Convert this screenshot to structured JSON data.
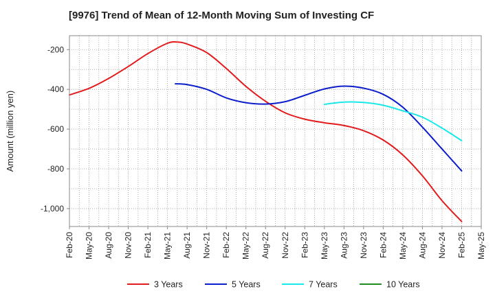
{
  "chart_data": {
    "type": "line",
    "title": "[9976]  Trend of Mean of 12-Month Moving Sum of Investing CF",
    "xlabel": "",
    "ylabel": "Amount (million yen)",
    "x_ticks": [
      "Feb-20",
      "May-20",
      "Aug-20",
      "Nov-20",
      "Feb-21",
      "May-21",
      "Aug-21",
      "Nov-21",
      "Feb-22",
      "May-22",
      "Aug-22",
      "Nov-22",
      "Feb-23",
      "May-23",
      "Aug-23",
      "Nov-23",
      "Feb-24",
      "May-24",
      "Aug-24",
      "Nov-24",
      "Feb-25",
      "May-25"
    ],
    "y_ticks": [
      -200,
      -400,
      -600,
      -800,
      -1000
    ],
    "y_tick_labels": [
      "-200",
      "-400",
      "-600",
      "-800",
      "-1,000"
    ],
    "ylim": [
      -1090,
      -130
    ],
    "grid": true,
    "series": [
      {
        "name": "3 Years",
        "color": "#e31a1c",
        "points": [
          [
            0,
            -428
          ],
          [
            1,
            -395
          ],
          [
            2,
            -345
          ],
          [
            3,
            -285
          ],
          [
            4,
            -220
          ],
          [
            5,
            -168
          ],
          [
            5.5,
            -162
          ],
          [
            6,
            -172
          ],
          [
            7,
            -215
          ],
          [
            8,
            -295
          ],
          [
            9,
            -385
          ],
          [
            10,
            -460
          ],
          [
            11,
            -518
          ],
          [
            12,
            -550
          ],
          [
            13,
            -568
          ],
          [
            14,
            -582
          ],
          [
            15,
            -608
          ],
          [
            16,
            -655
          ],
          [
            17,
            -730
          ],
          [
            18,
            -835
          ],
          [
            19,
            -960
          ],
          [
            20,
            -1065
          ]
        ]
      },
      {
        "name": "5 Years",
        "color": "#0a1ccc",
        "points": [
          [
            5.4,
            -372
          ],
          [
            6,
            -376
          ],
          [
            7,
            -400
          ],
          [
            8,
            -443
          ],
          [
            9,
            -467
          ],
          [
            10,
            -474
          ],
          [
            11,
            -462
          ],
          [
            12,
            -430
          ],
          [
            13,
            -398
          ],
          [
            14,
            -384
          ],
          [
            15,
            -394
          ],
          [
            16,
            -425
          ],
          [
            17,
            -490
          ],
          [
            18,
            -590
          ],
          [
            19,
            -700
          ],
          [
            20,
            -810
          ]
        ]
      },
      {
        "name": "7 Years",
        "color": "#19e8e8",
        "points": [
          [
            13,
            -475
          ],
          [
            14,
            -464
          ],
          [
            15,
            -466
          ],
          [
            16,
            -480
          ],
          [
            17,
            -508
          ],
          [
            18,
            -540
          ],
          [
            19,
            -595
          ],
          [
            20,
            -658
          ]
        ]
      },
      {
        "name": "10 Years",
        "color": "#1e8c1e",
        "points": []
      }
    ]
  }
}
